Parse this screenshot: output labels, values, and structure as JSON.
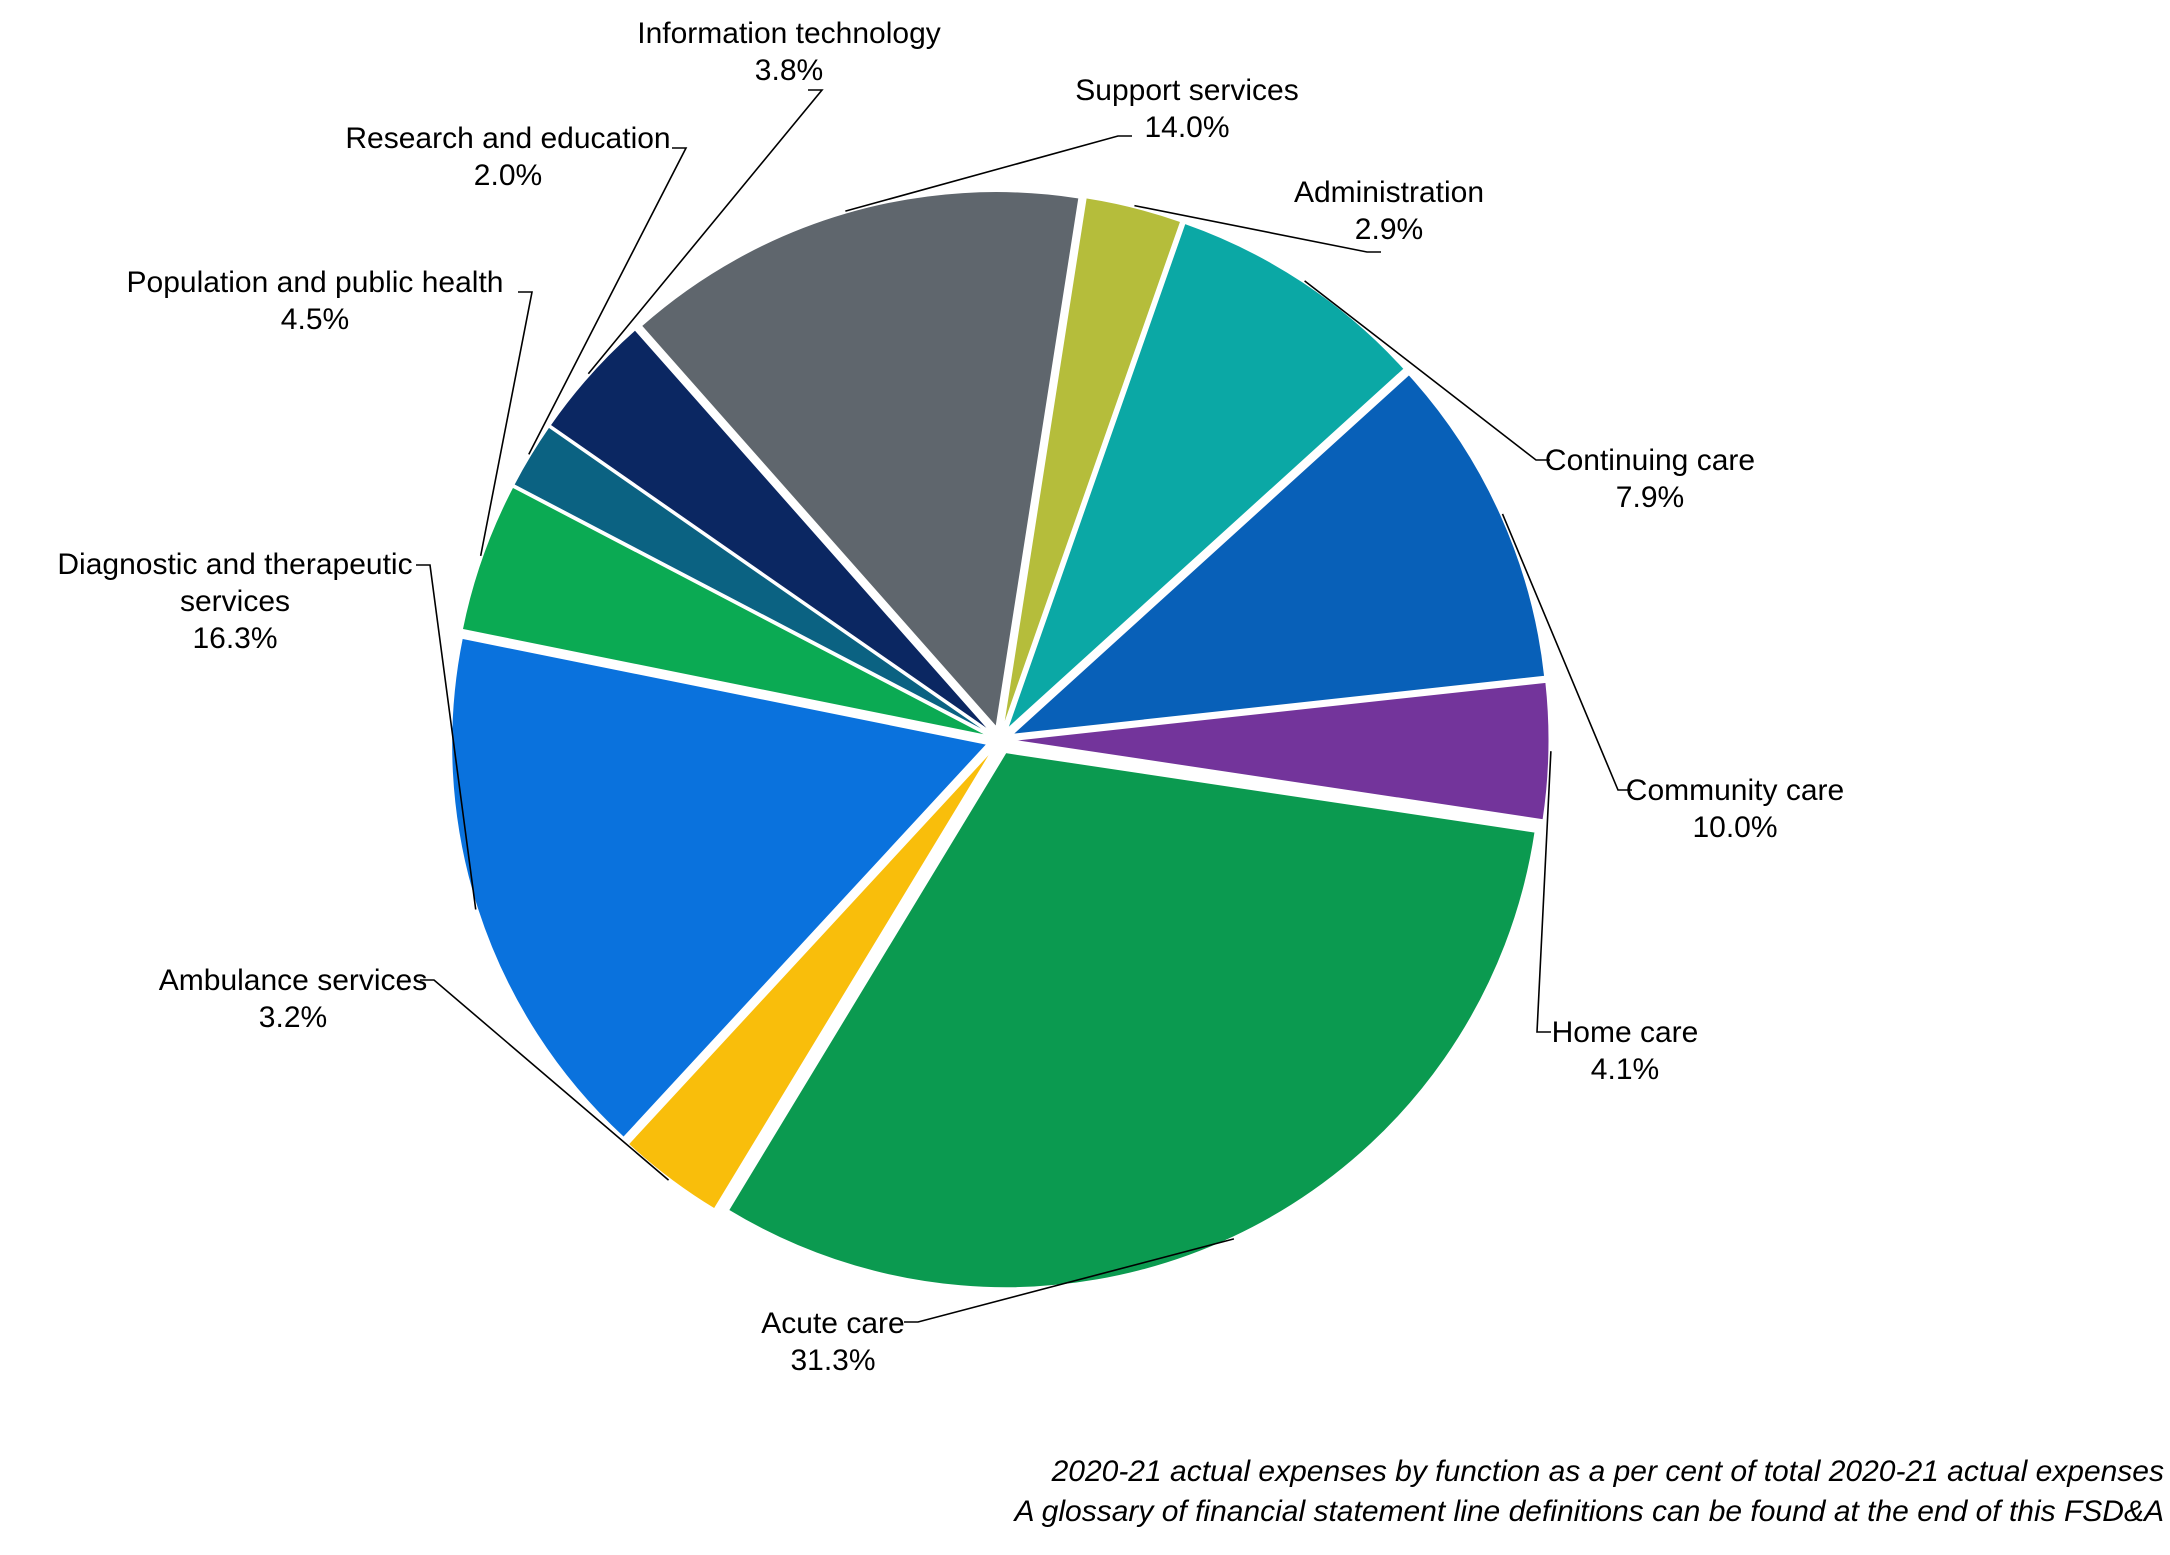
{
  "chart_data": {
    "type": "pie",
    "title": "",
    "slices": [
      {
        "label": "Support services",
        "value": 14.0,
        "display": "14.0%",
        "color": "#5F666D"
      },
      {
        "label": "Administration",
        "value": 2.9,
        "display": "2.9%",
        "color": "#B5BD3B"
      },
      {
        "label": "Continuing care",
        "value": 7.9,
        "display": "7.9%",
        "color": "#0BA8A5"
      },
      {
        "label": "Community care",
        "value": 10.0,
        "display": "10.0%",
        "color": "#0860B8"
      },
      {
        "label": "Home care",
        "value": 4.1,
        "display": "4.1%",
        "color": "#73349B"
      },
      {
        "label": "Acute care",
        "value": 31.3,
        "display": "31.3%",
        "color": "#0B9A50"
      },
      {
        "label": "Ambulance services",
        "value": 3.2,
        "display": "3.2%",
        "color": "#F9BE0B"
      },
      {
        "label": "Diagnostic and therapeutic services",
        "value": 16.3,
        "display": "16.3%",
        "color": "#0A72DD"
      },
      {
        "label": "Population and public health",
        "value": 4.5,
        "display": "4.5%",
        "color": "#0BAA53"
      },
      {
        "label": "Research and education",
        "value": 2.0,
        "display": "2.0%",
        "color": "#0B6282"
      },
      {
        "label": "Information technology",
        "value": 3.8,
        "display": "3.8%",
        "color": "#0B2762"
      }
    ],
    "labels_lines": [
      [
        "Support services",
        "14.0%"
      ],
      [
        "Administration",
        "2.9%"
      ],
      [
        "Continuing care",
        "7.9%"
      ],
      [
        "Community care",
        "10.0%"
      ],
      [
        "Home care",
        "4.1%"
      ],
      [
        "Acute care",
        "31.3%"
      ],
      [
        "Ambulance services",
        "3.2%"
      ],
      [
        "Diagnostic and therapeutic",
        "services",
        "16.3%"
      ],
      [
        "Population and public health",
        "4.5%"
      ],
      [
        "Research and education",
        "2.0%"
      ],
      [
        "Information technology",
        "3.8%"
      ]
    ],
    "legend": "none",
    "exploded": true
  },
  "footnotes": {
    "line1": "2020-21 actual expenses by function as a per cent of total 2020-21 actual expenses",
    "line2": "A glossary of financial statement line definitions can be found at the end of this FSD&A"
  }
}
